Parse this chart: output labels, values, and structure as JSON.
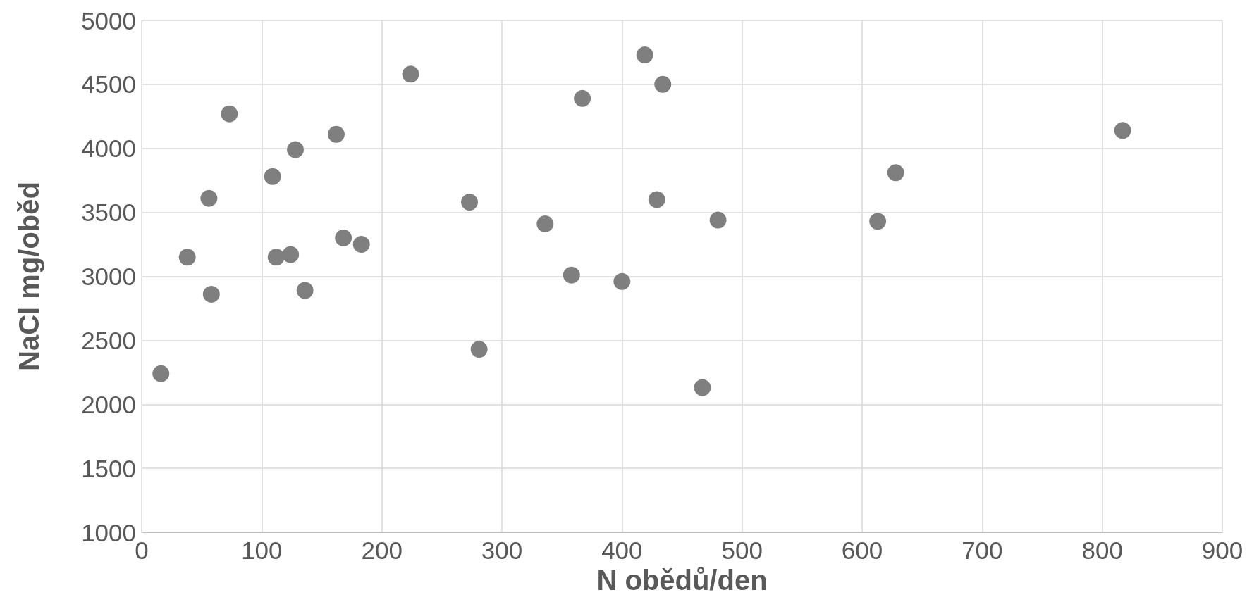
{
  "chart_data": {
    "type": "scatter",
    "xlabel": "N obědů/den",
    "ylabel": "NaCl mg/oběd",
    "x": [
      16,
      38,
      58,
      56,
      73,
      109,
      112,
      124,
      128,
      136,
      162,
      168,
      183,
      224,
      273,
      281,
      336,
      358,
      367,
      400,
      419,
      434,
      429,
      467,
      480,
      613,
      628,
      817
    ],
    "values": [
      2240,
      3150,
      2860,
      3610,
      4270,
      3780,
      3150,
      3170,
      3990,
      2890,
      4110,
      3300,
      3250,
      4580,
      3580,
      2430,
      3410,
      3010,
      4390,
      2960,
      4730,
      4500,
      3600,
      2130,
      3440,
      3430,
      3810,
      4140
    ],
    "color": "#7f7f7f",
    "marker": "circle",
    "grid": true,
    "xlim": [
      0,
      900
    ],
    "xticks": [
      0,
      100,
      200,
      300,
      400,
      500,
      600,
      700,
      800,
      900
    ],
    "ylim": [
      1000,
      5000
    ],
    "yticks": [
      1000,
      1500,
      2000,
      2500,
      3000,
      3500,
      4000,
      4500,
      5000
    ]
  }
}
